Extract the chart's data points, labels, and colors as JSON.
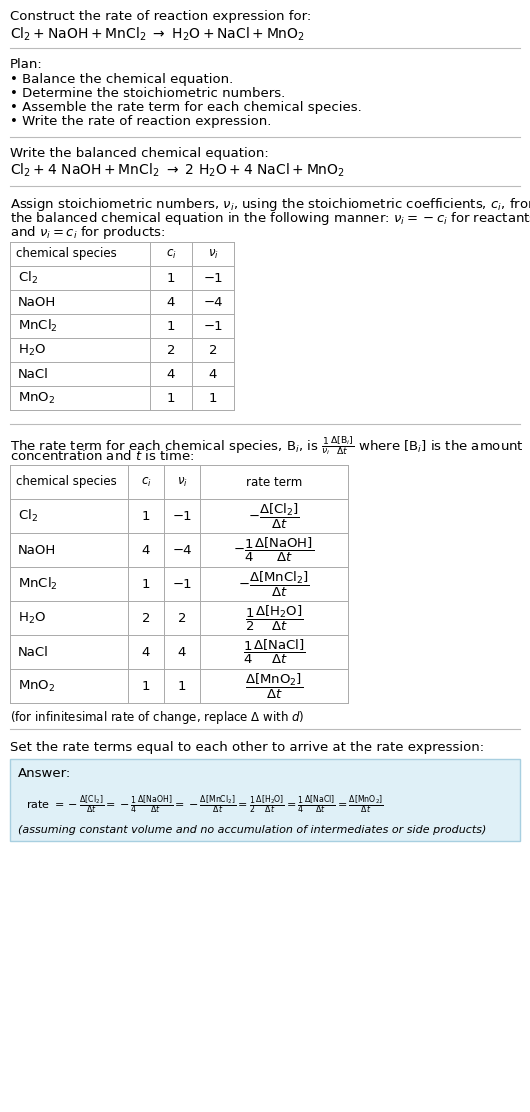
{
  "title_line1": "Construct the rate of reaction expression for:",
  "plan_header": "Plan:",
  "plan_items": [
    "• Balance the chemical equation.",
    "• Determine the stoichiometric numbers.",
    "• Assemble the rate term for each chemical species.",
    "• Write the rate of reaction expression."
  ],
  "balanced_header": "Write the balanced chemical equation:",
  "table1_headers": [
    "chemical species",
    "c_i",
    "v_i"
  ],
  "table1_species": [
    "Cl$_2$",
    "NaOH",
    "MnCl$_2$",
    "H$_2$O",
    "NaCl",
    "MnO$_2$"
  ],
  "table1_ci": [
    "1",
    "4",
    "1",
    "2",
    "4",
    "1"
  ],
  "table1_vi": [
    "−1",
    "−4",
    "−1",
    "2",
    "4",
    "1"
  ],
  "table2_headers": [
    "chemical species",
    "c_i",
    "v_i",
    "rate term"
  ],
  "table2_species": [
    "Cl$_2$",
    "NaOH",
    "MnCl$_2$",
    "H$_2$O",
    "NaCl",
    "MnO$_2$"
  ],
  "table2_ci": [
    "1",
    "4",
    "1",
    "2",
    "4",
    "1"
  ],
  "table2_vi": [
    "−1",
    "−4",
    "−1",
    "2",
    "4",
    "1"
  ],
  "infinitesimal_note": "(for infinitesimal rate of change, replace Δ with d)",
  "set_equal_text": "Set the rate terms equal to each other to arrive at the rate expression:",
  "answer_label": "Answer:",
  "answer_box_color": "#dff0f7",
  "answer_box_border": "#a8cfe0",
  "assuming_note": "(assuming constant volume and no accumulation of intermediates or side products)",
  "bg_color": "#ffffff",
  "text_color": "#000000",
  "line_color": "#bbbbbb",
  "table_border_color": "#aaaaaa"
}
